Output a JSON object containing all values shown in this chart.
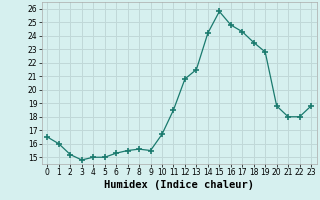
{
  "title": "",
  "xlabel": "Humidex (Indice chaleur)",
  "ylabel": "",
  "x": [
    0,
    1,
    2,
    3,
    4,
    5,
    6,
    7,
    8,
    9,
    10,
    11,
    12,
    13,
    14,
    15,
    16,
    17,
    18,
    19,
    20,
    21,
    22,
    23
  ],
  "y": [
    16.5,
    16.0,
    15.2,
    14.8,
    15.0,
    15.0,
    15.3,
    15.5,
    15.6,
    15.5,
    16.7,
    18.5,
    20.8,
    21.5,
    24.2,
    25.8,
    24.8,
    24.3,
    23.5,
    22.8,
    18.8,
    18.0,
    18.0,
    18.8
  ],
  "line_color": "#1a7a6e",
  "marker": "+",
  "marker_size": 4,
  "background_color": "#d6f0ef",
  "grid_color": "#c0d8d8",
  "ylim": [
    14.5,
    26.5
  ],
  "xlim": [
    -0.5,
    23.5
  ],
  "yticks": [
    15,
    16,
    17,
    18,
    19,
    20,
    21,
    22,
    23,
    24,
    25,
    26
  ],
  "xticks": [
    0,
    1,
    2,
    3,
    4,
    5,
    6,
    7,
    8,
    9,
    10,
    11,
    12,
    13,
    14,
    15,
    16,
    17,
    18,
    19,
    20,
    21,
    22,
    23
  ],
  "tick_fontsize": 5.5,
  "label_fontsize": 7.5
}
